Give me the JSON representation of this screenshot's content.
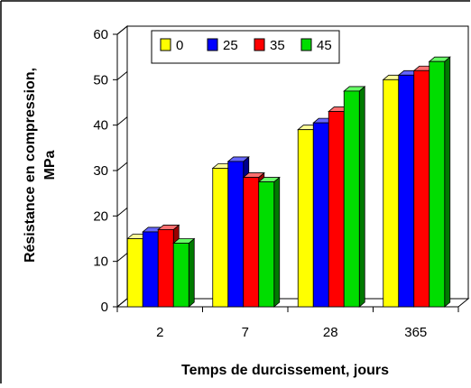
{
  "chart_data": {
    "type": "bar",
    "title": "",
    "xlabel": "Temps de durcissement, jours",
    "ylabel_lines": [
      "Résistance en compression,",
      "MPa"
    ],
    "categories": [
      "2",
      "7",
      "28",
      "365"
    ],
    "yticks": [
      "0",
      "10",
      "20",
      "30",
      "40",
      "50",
      "60"
    ],
    "ylim": [
      0,
      60
    ],
    "legend_position": "top-left",
    "three_d": true,
    "grid": false,
    "series": [
      {
        "name": "0",
        "color": "#ffff00",
        "side": "#a6a600",
        "top": "#ffff99",
        "values": [
          15,
          30.5,
          39,
          50
        ]
      },
      {
        "name": "25",
        "color": "#0000ff",
        "side": "#00008c",
        "top": "#6666ff",
        "values": [
          16.5,
          32,
          40.5,
          51
        ]
      },
      {
        "name": "35",
        "color": "#ff0000",
        "side": "#990000",
        "top": "#ff7070",
        "values": [
          17,
          28.5,
          43,
          52
        ]
      },
      {
        "name": "45",
        "color": "#00dd00",
        "side": "#007a00",
        "top": "#66ff66",
        "values": [
          14,
          27.5,
          47.5,
          54
        ]
      }
    ]
  }
}
